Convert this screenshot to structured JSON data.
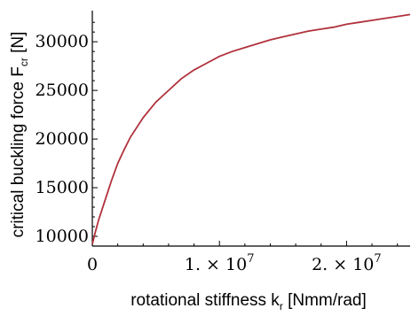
{
  "chart_data": {
    "type": "line",
    "title": "",
    "xlabel": {
      "main": "rotational stiffness k",
      "sub": "r",
      "unit": " [Nmm/rad]"
    },
    "ylabel": {
      "main": "critical buckling force F",
      "sub": "cr",
      "unit": " [N]"
    },
    "xlim": [
      0,
      25000000
    ],
    "ylim": [
      9000,
      33200
    ],
    "xticks": [
      {
        "value": 0,
        "label": "0"
      },
      {
        "value": 10000000,
        "label": "1. × 10",
        "exp": "7"
      },
      {
        "value": 20000000,
        "label": "2. × 10",
        "exp": "7"
      }
    ],
    "yticks": [
      {
        "value": 10000,
        "label": "10000"
      },
      {
        "value": 15000,
        "label": "15000"
      },
      {
        "value": 20000,
        "label": "20000"
      },
      {
        "value": 25000,
        "label": "25000"
      },
      {
        "value": 30000,
        "label": "30000"
      }
    ],
    "series": [
      {
        "color": "#b0313c",
        "x": [
          0,
          250000,
          500000,
          1000000,
          1500000,
          2000000,
          2500000,
          3000000,
          4000000,
          5000000,
          6000000,
          7000000,
          8000000,
          9000000,
          10000000,
          11000000,
          12000000,
          13000000,
          14000000,
          15000000,
          16000000,
          17000000,
          18000000,
          19000000,
          20000000,
          21000000,
          22000000,
          23000000,
          24000000,
          25000000
        ],
        "y": [
          9200,
          10500,
          11700,
          13700,
          15700,
          17500,
          18900,
          20200,
          22200,
          23800,
          25000,
          26200,
          27100,
          27800,
          28500,
          29000,
          29400,
          29800,
          30200,
          30500,
          30800,
          31100,
          31300,
          31500,
          31800,
          32000,
          32200,
          32400,
          32600,
          32800
        ]
      }
    ]
  }
}
